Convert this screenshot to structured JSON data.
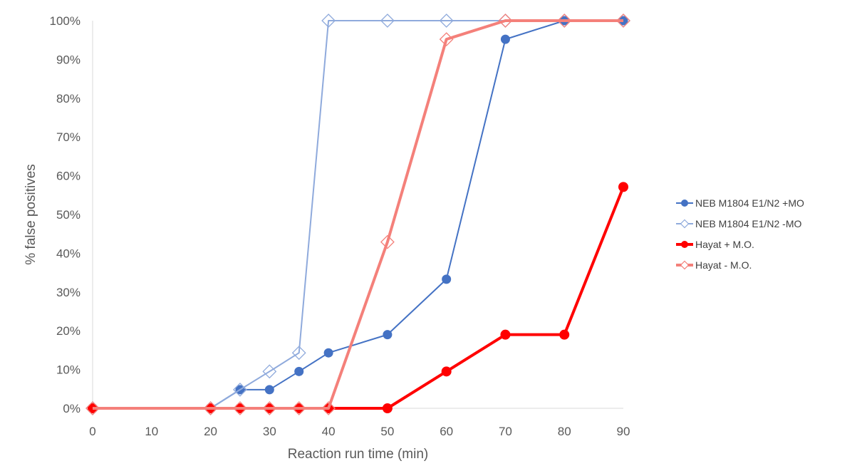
{
  "chart_data": {
    "type": "line",
    "title": "",
    "xlabel": "Reaction run time (min)",
    "ylabel": "% false positives",
    "xlim": [
      0,
      90
    ],
    "ylim": [
      0,
      100
    ],
    "x_ticks": [
      0,
      10,
      20,
      30,
      40,
      50,
      60,
      70,
      80,
      90
    ],
    "x_tick_labels": [
      "0",
      "10",
      "20",
      "30",
      "40",
      "50",
      "60",
      "70",
      "80",
      "90"
    ],
    "y_ticks": [
      0,
      10,
      20,
      30,
      40,
      50,
      60,
      70,
      80,
      90,
      100
    ],
    "y_tick_labels": [
      "0%",
      "10%",
      "20%",
      "30%",
      "40%",
      "50%",
      "60%",
      "70%",
      "80%",
      "90%",
      "100%"
    ],
    "grid": false,
    "legend_position": "right",
    "series": [
      {
        "name": "NEB M1804  E1/N2 +MO",
        "color": "#4472C4",
        "marker": "circle",
        "line": "thin",
        "x": [
          0,
          20,
          25,
          30,
          35,
          40,
          50,
          60,
          70,
          80,
          90
        ],
        "y": [
          0,
          0,
          4.8,
          4.8,
          9.5,
          14.3,
          19,
          33.3,
          95.2,
          100,
          100
        ]
      },
      {
        "name": "NEB M1804 E1/N2 -MO",
        "color": "#8FAADC",
        "marker": "diamond",
        "line": "thin",
        "x": [
          0,
          20,
          25,
          30,
          35,
          40,
          50,
          60,
          70,
          80,
          90
        ],
        "y": [
          0,
          0,
          4.8,
          9.5,
          14.3,
          100,
          100,
          100,
          100,
          100,
          100
        ]
      },
      {
        "name": "Hayat + M.O.",
        "color": "#FF0000",
        "marker": "circle",
        "line": "thick",
        "x": [
          0,
          20,
          25,
          30,
          35,
          40,
          50,
          60,
          70,
          80,
          90
        ],
        "y": [
          0,
          0,
          0,
          0,
          0,
          0,
          0,
          9.5,
          19,
          19,
          57.1
        ]
      },
      {
        "name": "Hayat - M.O.",
        "color": "#F4807A",
        "marker": "diamond",
        "line": "thick",
        "x": [
          0,
          20,
          25,
          30,
          35,
          40,
          50,
          60,
          70,
          80,
          90
        ],
        "y": [
          0,
          0,
          0,
          0,
          0,
          0,
          42.9,
          95.2,
          100,
          100,
          100
        ]
      }
    ]
  }
}
